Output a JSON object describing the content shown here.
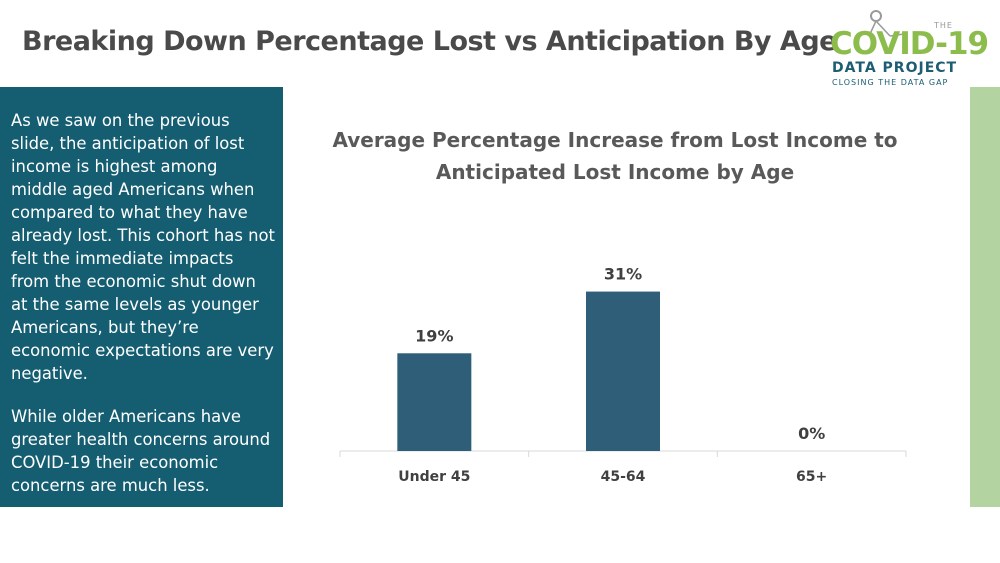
{
  "slide": {
    "title": "Breaking Down Percentage Lost vs Anticipation By Age"
  },
  "logo": {
    "the": "THE",
    "main": "COVID-19",
    "sub": "DATA PROJECT",
    "tagline": "CLOSING THE DATA GAP",
    "figure_icon": "person-figure-icon",
    "colors": {
      "green": "#8cbc4c",
      "teal": "#1c5d73"
    }
  },
  "side_panel": {
    "paragraph_1": "As we saw on the previous slide, the anticipation of lost income is highest among middle aged Americans when compared to what they have already lost. This cohort has not felt the immediate impacts from the economic shut down at the same levels as younger Americans, but they’re economic expectations are very negative.",
    "paragraph_2": "While older Americans have greater health concerns around COVID-19 their economic concerns are much less.",
    "background_color": "#155e72"
  },
  "accent_bar_color": "#b3d4a0",
  "chart_data": {
    "type": "bar",
    "title_line_1": "Average Percentage Increase from Lost Income to",
    "title_line_2": "Anticipated Lost Income by Age",
    "categories": [
      "Under 45",
      "45-64",
      "65+"
    ],
    "values": [
      19,
      31,
      0
    ],
    "data_labels": [
      "19%",
      "31%",
      "0%"
    ],
    "xlabel": "",
    "ylabel": "",
    "ylim": [
      0,
      35
    ],
    "grid": false,
    "legend": "none",
    "bar_color": "#2e5e78"
  }
}
